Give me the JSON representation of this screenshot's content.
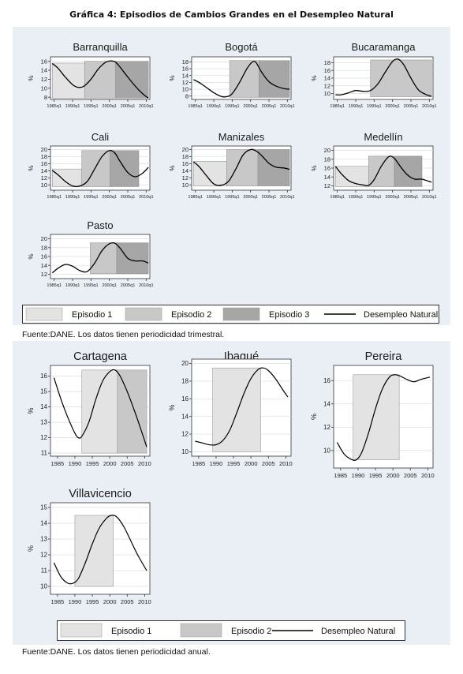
{
  "page": {
    "title": "Gráfica 4: Episodios de Cambios Grandes en el Desempleo Natural",
    "source_top": "Fuente:DANE. Los datos tienen periodicidad trimestral.",
    "source_bottom": "Fuente:DANE. Los datos tienen periodicidad anual."
  },
  "legend_top": {
    "items": [
      {
        "label": "Episodio 1",
        "kind": "box",
        "color": "#e3e3e3"
      },
      {
        "label": "Episodio 2",
        "kind": "box",
        "color": "#c8c8c8"
      },
      {
        "label": "Episodio 3",
        "kind": "box",
        "color": "#a6a6a6"
      },
      {
        "label": "Desempleo Natural",
        "kind": "line",
        "color": "#000000"
      }
    ]
  },
  "legend_bottom": {
    "items": [
      {
        "label": "Episodio 1",
        "kind": "box",
        "color": "#e3e3e3"
      },
      {
        "label": "Episodio 2",
        "kind": "box",
        "color": "#c8c8c8"
      },
      {
        "label": "Desempleo Natural",
        "kind": "line",
        "color": "#000000"
      }
    ]
  },
  "colors": {
    "episode_1": "#e3e3e3",
    "episode_2": "#c8c8c8",
    "episode_3": "#a6a6a6",
    "line": "#000000"
  },
  "chart_data": [
    {
      "type": "line",
      "title": "Barranquilla",
      "ylabel": "%",
      "xlim": [
        1984,
        2011
      ],
      "ylim": [
        7.5,
        17
      ],
      "yticks": [
        8,
        10,
        12,
        14,
        16
      ],
      "xticks": [
        1985,
        1990,
        1995,
        2000,
        2005,
        2010
      ],
      "xticklabels": [
        "1985q1",
        "1990q1",
        "1995q1",
        "2000q1",
        "2005q1",
        "2010q1"
      ],
      "episodes": [
        {
          "episode": 1,
          "start": 1984.5,
          "end": 1993.3,
          "ymin": 7.8,
          "ymax": 15.6
        },
        {
          "episode": 2,
          "start": 1993.3,
          "end": 2001.7,
          "ymin": 7.8,
          "ymax": 16.0
        },
        {
          "episode": 3,
          "start": 2001.7,
          "end": 2010.6,
          "ymin": 7.8,
          "ymax": 16.0
        }
      ],
      "x": [
        1984.5,
        1986,
        1988,
        1990,
        1991.5,
        1993,
        1995,
        1997,
        1999,
        2000.5,
        2001.7,
        2003,
        2005,
        2007,
        2009,
        2010.6
      ],
      "y": [
        15.5,
        14.5,
        12.5,
        10.8,
        10.2,
        10.4,
        12.0,
        14.3,
        15.8,
        16.1,
        15.8,
        14.6,
        12.5,
        10.5,
        8.8,
        7.8
      ]
    },
    {
      "type": "line",
      "title": "Bogotá",
      "ylabel": "%",
      "xlim": [
        1984,
        2011
      ],
      "ylim": [
        7,
        19.5
      ],
      "yticks": [
        8,
        10,
        12,
        14,
        16,
        18
      ],
      "xticks": [
        1985,
        1990,
        1995,
        2000,
        2005,
        2010
      ],
      "xticklabels": [
        "1985q1",
        "1990q1",
        "1995q1",
        "2000q1",
        "2005q1",
        "2010q1"
      ],
      "episodes": [
        {
          "episode": 2,
          "start": 1994.3,
          "end": 2002.3,
          "ymin": 7.6,
          "ymax": 18.4
        },
        {
          "episode": 3,
          "start": 2002.3,
          "end": 2010.6,
          "ymin": 7.6,
          "ymax": 18.4
        }
      ],
      "x": [
        1984.5,
        1986,
        1988,
        1990,
        1992,
        1993.5,
        1995,
        1997,
        1999,
        2000.5,
        2001.5,
        2003,
        2005,
        2007,
        2009,
        2010.6
      ],
      "y": [
        12.8,
        12.0,
        10.5,
        9.0,
        7.9,
        7.8,
        8.7,
        12.0,
        16.0,
        18.0,
        17.8,
        15.0,
        12.2,
        10.9,
        10.2,
        10.0
      ]
    },
    {
      "type": "line",
      "title": "Bucaramanga",
      "ylabel": "%",
      "xlim": [
        1984,
        2011
      ],
      "ylim": [
        8.5,
        19.5
      ],
      "yticks": [
        10,
        12,
        14,
        16,
        18
      ],
      "xticks": [
        1985,
        1990,
        1995,
        2000,
        2005,
        2010
      ],
      "xticklabels": [
        "1985q1",
        "1990q1",
        "1995q1",
        "2000q1",
        "2005q1",
        "2010q1"
      ],
      "episodes": [
        {
          "episode": 2,
          "start": 1994.0,
          "end": 2010.6,
          "ymin": 9.2,
          "ymax": 18.7
        }
      ],
      "x": [
        1984.5,
        1986,
        1988,
        1990,
        1992,
        1994,
        1996,
        1998,
        2000,
        2001.5,
        2003,
        2005,
        2007,
        2009,
        2010.6
      ],
      "y": [
        9.7,
        9.7,
        10.2,
        10.8,
        10.6,
        10.8,
        12.5,
        15.5,
        18.3,
        18.9,
        17.5,
        14.0,
        11.0,
        9.8,
        9.3
      ]
    },
    {
      "type": "line",
      "title": "Cali",
      "ylabel": "%",
      "xlim": [
        1984,
        2011
      ],
      "ylim": [
        8.5,
        21
      ],
      "yticks": [
        10,
        12,
        14,
        16,
        18,
        20
      ],
      "xticks": [
        1985,
        1990,
        1995,
        2000,
        2005,
        2010
      ],
      "xticklabels": [
        "1985q1",
        "1990q1",
        "1995q1",
        "2000q1",
        "2005q1",
        "2010q1"
      ],
      "episodes": [
        {
          "episode": 1,
          "start": 1984.5,
          "end": 1992.5,
          "ymin": 9.5,
          "ymax": 14.5
        },
        {
          "episode": 2,
          "start": 1992.5,
          "end": 2000.2,
          "ymin": 9.5,
          "ymax": 19.7
        },
        {
          "episode": 3,
          "start": 2000.2,
          "end": 2008.0,
          "ymin": 9.5,
          "ymax": 19.7
        }
      ],
      "x": [
        1984.5,
        1986,
        1988,
        1990,
        1992,
        1994,
        1996,
        1998,
        2000,
        2001.5,
        2003,
        2005,
        2007,
        2009,
        2010.6
      ],
      "y": [
        14.1,
        12.9,
        11.0,
        9.7,
        9.7,
        11.0,
        14.5,
        18.0,
        19.7,
        19.0,
        16.5,
        13.5,
        12.3,
        13.3,
        15.0
      ]
    },
    {
      "type": "line",
      "title": "Manizales",
      "ylabel": "%",
      "xlim": [
        1984,
        2011
      ],
      "ylim": [
        8.5,
        21
      ],
      "yticks": [
        10,
        12,
        14,
        16,
        18,
        20
      ],
      "xticks": [
        1985,
        1990,
        1995,
        2000,
        2005,
        2010
      ],
      "xticklabels": [
        "1985q1",
        "1990q1",
        "1995q1",
        "2000q1",
        "2005q1",
        "2010q1"
      ],
      "episodes": [
        {
          "episode": 1,
          "start": 1984.5,
          "end": 1993.5,
          "ymin": 9.7,
          "ymax": 16.7
        },
        {
          "episode": 2,
          "start": 1993.5,
          "end": 2002.0,
          "ymin": 9.7,
          "ymax": 20.0
        },
        {
          "episode": 3,
          "start": 2002.0,
          "end": 2010.6,
          "ymin": 9.7,
          "ymax": 20.0
        }
      ],
      "x": [
        1984.5,
        1986,
        1988,
        1990,
        1992,
        1994,
        1996,
        1998,
        2000,
        2001.5,
        2003,
        2005,
        2007,
        2009,
        2010.6
      ],
      "y": [
        16.5,
        15.2,
        12.6,
        10.3,
        9.9,
        11.0,
        14.5,
        18.5,
        20.0,
        19.6,
        18.3,
        16.1,
        15.0,
        14.8,
        14.4
      ]
    },
    {
      "type": "line",
      "title": "Medellín",
      "ylabel": "%",
      "xlim": [
        1984,
        2011
      ],
      "ylim": [
        11,
        21
      ],
      "yticks": [
        12,
        14,
        16,
        18,
        20
      ],
      "xticks": [
        1985,
        1990,
        1995,
        2000,
        2005,
        2010
      ],
      "xticklabels": [
        "1985q1",
        "1990q1",
        "1995q1",
        "2000q1",
        "2005q1",
        "2010q1"
      ],
      "episodes": [
        {
          "episode": 1,
          "start": 1984.5,
          "end": 1993.5,
          "ymin": 11.8,
          "ymax": 16.4
        },
        {
          "episode": 2,
          "start": 1993.5,
          "end": 2000.5,
          "ymin": 11.8,
          "ymax": 18.7
        },
        {
          "episode": 3,
          "start": 2000.5,
          "end": 2008.0,
          "ymin": 11.8,
          "ymax": 18.7
        }
      ],
      "x": [
        1984.5,
        1986,
        1988,
        1990,
        1992,
        1993.5,
        1995,
        1997,
        1999,
        2000.5,
        2002,
        2004,
        2006,
        2008,
        2010.6
      ],
      "y": [
        16.4,
        14.8,
        13.2,
        12.5,
        12.2,
        12.1,
        13.4,
        16.5,
        18.6,
        18.2,
        16.5,
        14.5,
        13.5,
        13.5,
        12.8
      ]
    },
    {
      "type": "line",
      "title": "Pasto",
      "ylabel": "%",
      "xlim": [
        1984,
        2011
      ],
      "ylim": [
        11,
        21
      ],
      "yticks": [
        12,
        14,
        16,
        18,
        20
      ],
      "xticks": [
        1985,
        1990,
        1995,
        2000,
        2005,
        2010
      ],
      "xticklabels": [
        "1985q1",
        "1990q1",
        "1995q1",
        "2000q1",
        "2005q1",
        "2010q1"
      ],
      "episodes": [
        {
          "episode": 2,
          "start": 1994.8,
          "end": 2002.0,
          "ymin": 12.1,
          "ymax": 19.1
        },
        {
          "episode": 3,
          "start": 2002.0,
          "end": 2010.6,
          "ymin": 12.1,
          "ymax": 19.1
        }
      ],
      "x": [
        1984.5,
        1986,
        1988,
        1990,
        1992,
        1994,
        1996,
        1998,
        2000,
        2001.5,
        2003,
        2005,
        2007,
        2009,
        2010.6
      ],
      "y": [
        12.3,
        13.3,
        14.2,
        13.8,
        12.8,
        12.6,
        14.5,
        17.3,
        18.9,
        19.0,
        17.8,
        15.6,
        15.0,
        15.0,
        14.5
      ]
    },
    {
      "type": "line",
      "title": "Cartagena",
      "ylabel": "%",
      "xlim": [
        1983,
        2011.5
      ],
      "ylim": [
        10.8,
        16.7
      ],
      "yticks": [
        11,
        12,
        13,
        14,
        15,
        16
      ],
      "xticks": [
        1985,
        1990,
        1995,
        2000,
        2005,
        2010
      ],
      "xticklabels": [
        "1985",
        "1990",
        "1995",
        "2000",
        "2005",
        "2010"
      ],
      "episodes": [
        {
          "episode": 1,
          "start": 1992.0,
          "end": 2002.2,
          "ymin": 11.0,
          "ymax": 16.4
        },
        {
          "episode": 2,
          "start": 2002.2,
          "end": 2010.6,
          "ymin": 11.0,
          "ymax": 16.4
        }
      ],
      "x": [
        1984,
        1986,
        1988,
        1990,
        1991,
        1992,
        1994,
        1996,
        1998,
        2000,
        2001.5,
        2003,
        2005,
        2007,
        2009,
        2010.6
      ],
      "y": [
        15.9,
        14.5,
        13.3,
        12.3,
        12.0,
        12.1,
        13.0,
        14.5,
        15.7,
        16.3,
        16.4,
        16.0,
        15.0,
        13.8,
        12.5,
        11.4
      ]
    },
    {
      "type": "line",
      "title": "Ibagué",
      "ylabel": "%",
      "xlim": [
        1983,
        2011.5
      ],
      "ylim": [
        9.5,
        20.5
      ],
      "yticks": [
        10,
        12,
        14,
        16,
        18,
        20
      ],
      "xticks": [
        1985,
        1990,
        1995,
        2000,
        2005,
        2010
      ],
      "xticklabels": [
        "1985",
        "1990",
        "1995",
        "2000",
        "2005",
        "2010"
      ],
      "episodes": [
        {
          "episode": 1,
          "start": 1989.0,
          "end": 2002.8,
          "ymin": 10.0,
          "ymax": 19.5
        }
      ],
      "x": [
        1984,
        1986,
        1988,
        1990,
        1992,
        1994,
        1996,
        1998,
        2000,
        2002,
        2003.5,
        2005,
        2007,
        2009,
        2010.6
      ],
      "y": [
        11.2,
        11.0,
        10.8,
        10.8,
        11.3,
        12.5,
        14.5,
        16.6,
        18.3,
        19.3,
        19.5,
        19.2,
        18.3,
        17.1,
        16.2
      ]
    },
    {
      "type": "line",
      "title": "Pereira",
      "ylabel": "%",
      "xlim": [
        1983,
        2011.5
      ],
      "ylim": [
        8.5,
        17.3
      ],
      "yticks": [
        10,
        12,
        14,
        16
      ],
      "xticks": [
        1985,
        1990,
        1995,
        2000,
        2005,
        2010
      ],
      "xticklabels": [
        "1985",
        "1990",
        "1995",
        "2000",
        "2005",
        "2010"
      ],
      "episodes": [
        {
          "episode": 1,
          "start": 1988.6,
          "end": 2001.8,
          "ymin": 9.2,
          "ymax": 16.5
        }
      ],
      "x": [
        1984,
        1986,
        1988,
        1989.5,
        1991,
        1993,
        1995,
        1997,
        1999,
        2000.5,
        2002,
        2004,
        2006,
        2008,
        2010.6
      ],
      "y": [
        10.7,
        9.7,
        9.25,
        9.2,
        9.8,
        11.5,
        13.6,
        15.3,
        16.3,
        16.5,
        16.4,
        16.1,
        15.9,
        16.1,
        16.3
      ]
    },
    {
      "type": "line",
      "title": "Villavicencio",
      "ylabel": "%",
      "xlim": [
        1983,
        2011.5
      ],
      "ylim": [
        9.5,
        15.3
      ],
      "yticks": [
        10,
        11,
        12,
        13,
        14,
        15
      ],
      "xticks": [
        1985,
        1990,
        1995,
        2000,
        2005,
        2010
      ],
      "xticklabels": [
        "1985",
        "1990",
        "1995",
        "2000",
        "2005",
        "2010"
      ],
      "episodes": [
        {
          "episode": 1,
          "start": 1990.0,
          "end": 2001.0,
          "ymin": 10.0,
          "ymax": 14.5
        }
      ],
      "x": [
        1984,
        1986,
        1988,
        1989.5,
        1991,
        1993,
        1995,
        1997,
        1999,
        2000.5,
        2002,
        2004,
        2006,
        2008,
        2010.6
      ],
      "y": [
        11.5,
        10.6,
        10.2,
        10.2,
        10.5,
        11.5,
        12.7,
        13.7,
        14.3,
        14.5,
        14.4,
        13.8,
        12.9,
        12.0,
        11.0
      ]
    }
  ]
}
